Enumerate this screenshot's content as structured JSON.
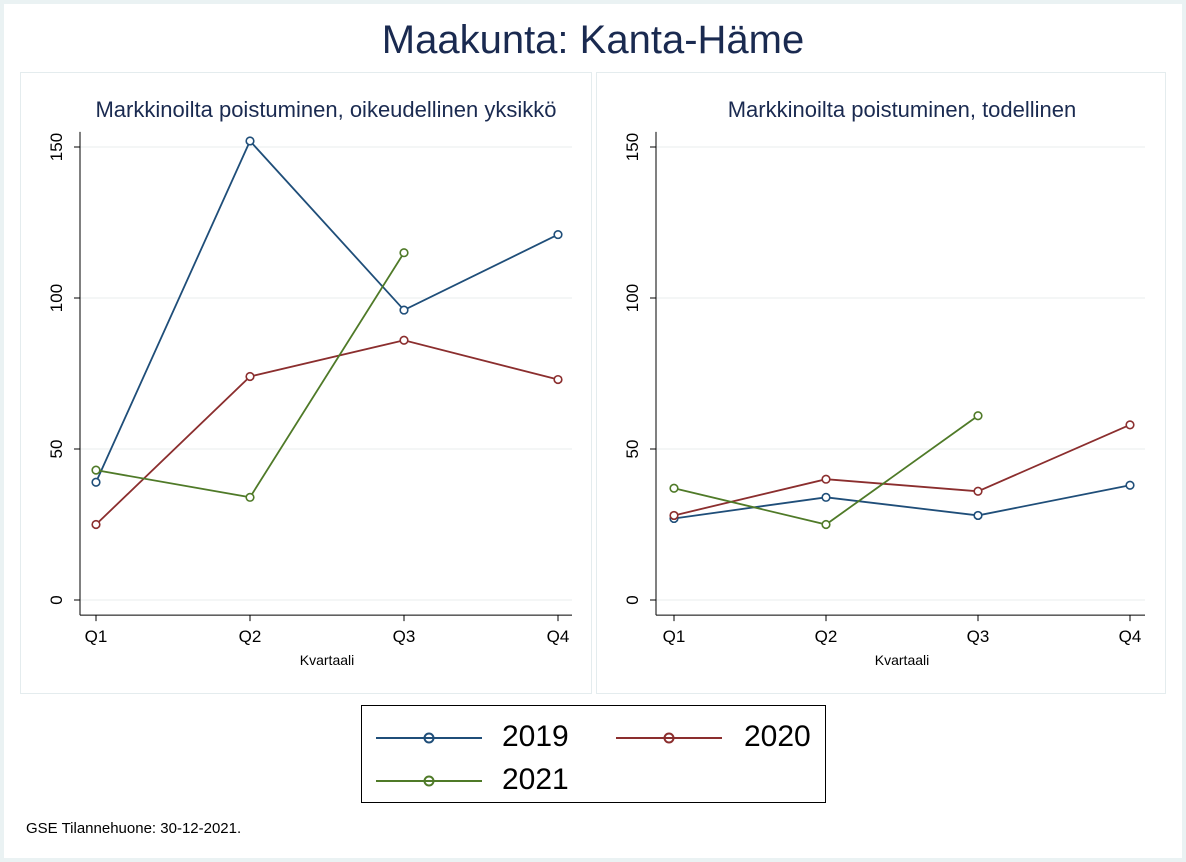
{
  "title": "Maakunta: Kanta-Häme",
  "colors": {
    "2019": "#1f4e79",
    "2020": "#8b2e2e",
    "2021": "#4f7a28"
  },
  "legend": [
    {
      "name": "2019",
      "color": "#1f4e79"
    },
    {
      "name": "2020",
      "color": "#8b2e2e"
    },
    {
      "name": "2021",
      "color": "#4f7a28"
    }
  ],
  "footnote": "GSE Tilannehuone: 30-12-2021.",
  "chart_data": [
    {
      "type": "line",
      "title": "Markkinoilta poistuminen, oikeudellinen yksikkö",
      "xlabel": "Kvartaali",
      "ylabel": "",
      "categories": [
        "Q1",
        "Q2",
        "Q3",
        "Q4"
      ],
      "yticks": [
        0,
        50,
        100,
        150
      ],
      "ylim": [
        -5,
        155
      ],
      "grid": true,
      "series": [
        {
          "name": "2019",
          "values": [
            39,
            152,
            96,
            121
          ]
        },
        {
          "name": "2020",
          "values": [
            25,
            74,
            86,
            73
          ]
        },
        {
          "name": "2021",
          "values": [
            43,
            34,
            115,
            null
          ]
        }
      ]
    },
    {
      "type": "line",
      "title": "Markkinoilta poistuminen, todellinen",
      "xlabel": "Kvartaali",
      "ylabel": "",
      "categories": [
        "Q1",
        "Q2",
        "Q3",
        "Q4"
      ],
      "yticks": [
        0,
        50,
        100,
        150
      ],
      "ylim": [
        -5,
        155
      ],
      "grid": true,
      "series": [
        {
          "name": "2019",
          "values": [
            27,
            34,
            28,
            38
          ]
        },
        {
          "name": "2020",
          "values": [
            28,
            40,
            36,
            58
          ]
        },
        {
          "name": "2021",
          "values": [
            37,
            25,
            61,
            null
          ]
        }
      ]
    }
  ]
}
